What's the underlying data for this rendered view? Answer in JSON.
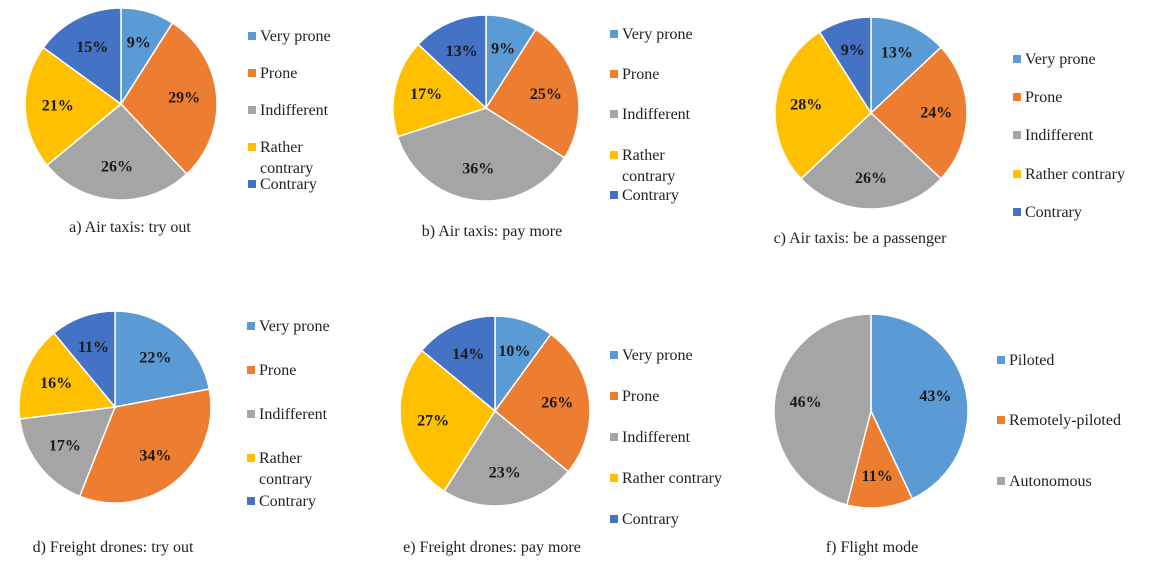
{
  "colors": {
    "Very prone": "#5b9bd5",
    "Prone": "#ed7d31",
    "Indifferent": "#a5a5a5",
    "Rather contrary": "#ffc000",
    "Contrary": "#4472c4",
    "Piloted": "#5b9bd5",
    "Remotely-piloted": "#ed7d31",
    "Autonomous": "#a5a5a5"
  },
  "chart_data": [
    {
      "type": "pie",
      "caption": "a) Air taxis: try out",
      "categories": [
        "Very prone",
        "Prone",
        "Indifferent",
        "Rather contrary",
        "Contrary"
      ],
      "legend_labels": [
        "Very prone",
        "Prone",
        "Indifferent",
        "Rather\ncontrary",
        "Contrary"
      ],
      "values": [
        9,
        29,
        26,
        21,
        15
      ],
      "labels": [
        "9%",
        "29%",
        "26%",
        "21%",
        "15%"
      ],
      "legend_position": "right"
    },
    {
      "type": "pie",
      "caption": "b) Air taxis: pay more",
      "categories": [
        "Very prone",
        "Prone",
        "Indifferent",
        "Rather contrary",
        "Contrary"
      ],
      "legend_labels": [
        "Very prone",
        "Prone",
        "Indifferent",
        "Rather\ncontrary",
        "Contrary"
      ],
      "values": [
        9,
        25,
        36,
        17,
        13
      ],
      "labels": [
        "9%",
        "25%",
        "36%",
        "17%",
        "13%"
      ],
      "legend_position": "right"
    },
    {
      "type": "pie",
      "caption": "c) Air taxis: be a passenger",
      "categories": [
        "Very prone",
        "Prone",
        "Indifferent",
        "Rather contrary",
        "Contrary"
      ],
      "legend_labels": [
        "Very prone",
        "Prone",
        "Indifferent",
        "Rather contrary",
        "Contrary"
      ],
      "values": [
        13,
        24,
        26,
        28,
        9
      ],
      "labels": [
        "13%",
        "24%",
        "26%",
        "28%",
        "9%"
      ],
      "legend_position": "right"
    },
    {
      "type": "pie",
      "caption": "d) Freight drones: try out",
      "categories": [
        "Very prone",
        "Prone",
        "Indifferent",
        "Rather contrary",
        "Contrary"
      ],
      "legend_labels": [
        "Very prone",
        "Prone",
        "Indifferent",
        "Rather\ncontrary",
        "Contrary"
      ],
      "values": [
        22,
        34,
        17,
        16,
        11
      ],
      "labels": [
        "22%",
        "34%",
        "17%",
        "16%",
        "11%"
      ],
      "legend_position": "right"
    },
    {
      "type": "pie",
      "caption": "e) Freight drones: pay more",
      "categories": [
        "Very prone",
        "Prone",
        "Indifferent",
        "Rather contrary",
        "Contrary"
      ],
      "legend_labels": [
        "Very prone",
        "Prone",
        "Indifferent",
        "Rather contrary",
        "Contrary"
      ],
      "values": [
        10,
        26,
        23,
        27,
        14
      ],
      "labels": [
        "10%",
        "26%",
        "23%",
        "27%",
        "14%"
      ],
      "legend_position": "right"
    },
    {
      "type": "pie",
      "caption": "f) Flight mode",
      "categories": [
        "Piloted",
        "Remotely-piloted",
        "Autonomous"
      ],
      "legend_labels": [
        "Piloted",
        "Remotely-piloted",
        "Autonomous"
      ],
      "values": [
        43,
        11,
        46
      ],
      "labels": [
        "43%",
        "11%",
        "46%"
      ],
      "legend_position": "right"
    }
  ]
}
